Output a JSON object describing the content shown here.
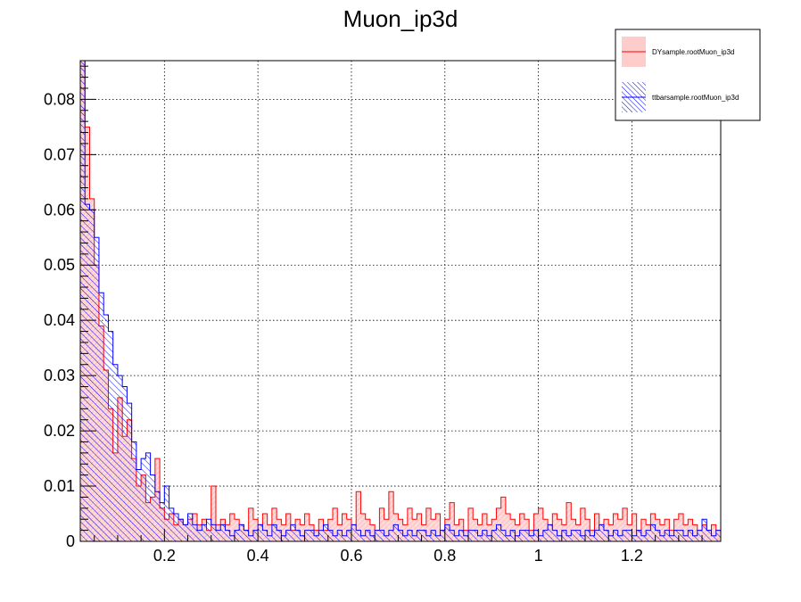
{
  "chart_data": {
    "type": "bar",
    "title": "Muon_ip3d",
    "xlabel": "",
    "ylabel": "",
    "xlim": [
      0.02,
      1.39
    ],
    "ylim": [
      0,
      0.087
    ],
    "grid": true,
    "legend_position": "top-right",
    "x_ticks": [
      {
        "value": 0.2,
        "label": "0.2"
      },
      {
        "value": 0.4,
        "label": "0.4"
      },
      {
        "value": 0.6,
        "label": "0.6"
      },
      {
        "value": 0.8,
        "label": "0.8"
      },
      {
        "value": 1.0,
        "label": "1"
      },
      {
        "value": 1.2,
        "label": "1.2"
      }
    ],
    "y_ticks": [
      {
        "value": 0,
        "label": "0"
      },
      {
        "value": 0.01,
        "label": "0.01"
      },
      {
        "value": 0.02,
        "label": "0.02"
      },
      {
        "value": 0.03,
        "label": "0.03"
      },
      {
        "value": 0.04,
        "label": "0.04"
      },
      {
        "value": 0.05,
        "label": "0.05"
      },
      {
        "value": 0.06,
        "label": "0.06"
      },
      {
        "value": 0.07,
        "label": "0.07"
      },
      {
        "value": 0.08,
        "label": "0.08"
      }
    ],
    "bin_start": 0.02,
    "bin_width": 0.01,
    "series": [
      {
        "name": "DYsample.rootMuon_ip3d",
        "color": "#ff0000",
        "fill": "#ffcccc",
        "values": [
          0.087,
          0.075,
          0.062,
          0.05,
          0.039,
          0.031,
          0.024,
          0.016,
          0.026,
          0.019,
          0.022,
          0.015,
          0.01,
          0.012,
          0.007,
          0.008,
          0.015,
          0.006,
          0.004,
          0.005,
          0.003,
          0.004,
          0.003,
          0.004,
          0.005,
          0.003,
          0.004,
          0.002,
          0.01,
          0.003,
          0.004,
          0.003,
          0.005,
          0.004,
          0.003,
          0.002,
          0.006,
          0.004,
          0.003,
          0.005,
          0.003,
          0.006,
          0.004,
          0.003,
          0.005,
          0.002,
          0.004,
          0.003,
          0.005,
          0.003,
          0.002,
          0.004,
          0.002,
          0.004,
          0.006,
          0.003,
          0.005,
          0.004,
          0.003,
          0.009,
          0.005,
          0.004,
          0.003,
          0.002,
          0.006,
          0.004,
          0.009,
          0.005,
          0.004,
          0.003,
          0.006,
          0.004,
          0.005,
          0.003,
          0.006,
          0.004,
          0.005,
          0.002,
          0.004,
          0.007,
          0.003,
          0.004,
          0.002,
          0.006,
          0.004,
          0.003,
          0.005,
          0.003,
          0.004,
          0.006,
          0.008,
          0.005,
          0.004,
          0.003,
          0.005,
          0.004,
          0.002,
          0.005,
          0.006,
          0.004,
          0.003,
          0.005,
          0.004,
          0.003,
          0.007,
          0.004,
          0.003,
          0.006,
          0.004,
          0.002,
          0.005,
          0.003,
          0.004,
          0.003,
          0.005,
          0.004,
          0.006,
          0.003,
          0.005,
          0.002,
          0.004,
          0.003,
          0.005,
          0.004,
          0.003,
          0.004,
          0.002,
          0.004,
          0.005,
          0.003,
          0.004,
          0.003,
          0.002,
          0.003,
          0.002,
          0.003,
          0.002
        ]
      },
      {
        "name": "ttbarsample.rootMuon_ip3d",
        "color": "#0000ff",
        "fill": "#0000ff",
        "values": [
          0.087,
          0.061,
          0.06,
          0.055,
          0.045,
          0.041,
          0.038,
          0.032,
          0.03,
          0.028,
          0.025,
          0.018,
          0.013,
          0.015,
          0.016,
          0.012,
          0.009,
          0.007,
          0.01,
          0.006,
          0.005,
          0.004,
          0.003,
          0.005,
          0.003,
          0.002,
          0.003,
          0.004,
          0.003,
          0.002,
          0.003,
          0.002,
          0.001,
          0.002,
          0.003,
          0.002,
          0.001,
          0.002,
          0.003,
          0.002,
          0.001,
          0.003,
          0.002,
          0.001,
          0.002,
          0.003,
          0.002,
          0.001,
          0.002,
          0.002,
          0.001,
          0.002,
          0.003,
          0.002,
          0.001,
          0.002,
          0.001,
          0.002,
          0.003,
          0.002,
          0.001,
          0.002,
          0.001,
          0.002,
          0.002,
          0.001,
          0.002,
          0.003,
          0.002,
          0.001,
          0.002,
          0.001,
          0.002,
          0.002,
          0.001,
          0.002,
          0.001,
          0.002,
          0.003,
          0.002,
          0.001,
          0.002,
          0.001,
          0.002,
          0.002,
          0.001,
          0.002,
          0.001,
          0.002,
          0.003,
          0.002,
          0.001,
          0.002,
          0.001,
          0.002,
          0.002,
          0.001,
          0.002,
          0.001,
          0.002,
          0.003,
          0.002,
          0.001,
          0.002,
          0.001,
          0.002,
          0.002,
          0.001,
          0.002,
          0.001,
          0.002,
          0.003,
          0.002,
          0.001,
          0.002,
          0.001,
          0.002,
          0.002,
          0.001,
          0.002,
          0.001,
          0.002,
          0.003,
          0.002,
          0.001,
          0.002,
          0.001,
          0.002,
          0.002,
          0.001,
          0.002,
          0.001,
          0.002,
          0.004,
          0.002,
          0.001,
          0.002
        ]
      }
    ]
  }
}
